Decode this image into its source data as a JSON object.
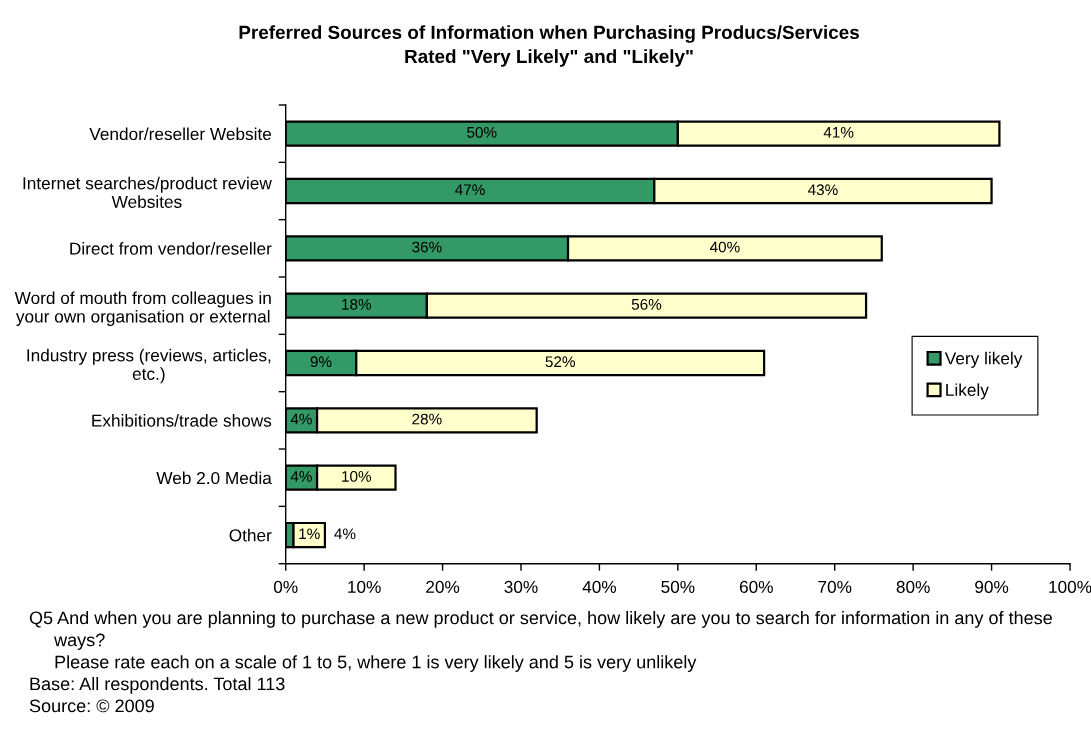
{
  "chart_data": {
    "type": "bar",
    "orientation": "horizontal",
    "stacked": true,
    "title": "Preferred Sources of Information when Purchasing Producs/Services",
    "subtitle": "Rated \"Very Likely\" and \"Likely\"",
    "categories": [
      "Vendor/reseller Website",
      "Internet searches/product review\nWebsites",
      "Direct from vendor/reseller",
      "Word of mouth from colleagues in\nyour own organisation or external",
      "Industry press (reviews, articles,\netc.)",
      "Exhibitions/trade shows",
      "Web 2.0 Media",
      "Other"
    ],
    "series": [
      {
        "name": "Very likely",
        "color": "#339966",
        "values": [
          50,
          47,
          36,
          18,
          9,
          4,
          4,
          1
        ],
        "value_labels": [
          "50%",
          "47%",
          "36%",
          "18%",
          "9%",
          "4%",
          "4%",
          "1%"
        ]
      },
      {
        "name": "Likely",
        "color": "#ffffcc",
        "values": [
          41,
          43,
          40,
          56,
          52,
          28,
          10,
          4
        ],
        "value_labels": [
          "41%",
          "43%",
          "40%",
          "56%",
          "52%",
          "28%",
          "10%",
          "4%"
        ]
      }
    ],
    "xlim": [
      0,
      100
    ],
    "xticks": [
      {
        "value": 0,
        "label": "0%"
      },
      {
        "value": 10,
        "label": "10%"
      },
      {
        "value": 20,
        "label": "20%"
      },
      {
        "value": 30,
        "label": "30%"
      },
      {
        "value": 40,
        "label": "40%"
      },
      {
        "value": 50,
        "label": "50%"
      },
      {
        "value": 60,
        "label": "60%"
      },
      {
        "value": 70,
        "label": "70%"
      },
      {
        "value": 80,
        "label": "80%"
      },
      {
        "value": 90,
        "label": "90%"
      },
      {
        "value": 100,
        "label": "100%"
      }
    ],
    "grid": false,
    "legend": "right",
    "annotations": [
      "Q5 And when you are planning to purchase a new product or service, how likely are you to search for information in any of these ways?\nPlease rate each on a scale of 1 to 5, where 1 is very likely and 5 is very unlikely",
      "Base: All respondents. Total 113",
      "Source: © 2009"
    ]
  }
}
